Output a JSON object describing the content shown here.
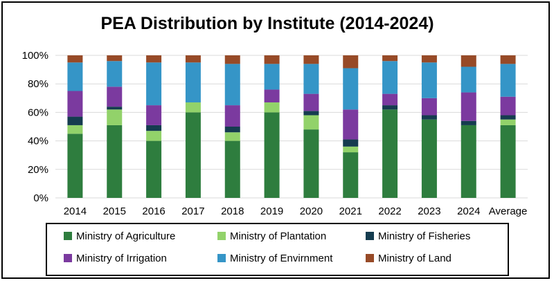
{
  "chart_data": {
    "type": "bar",
    "stacked": true,
    "percent": true,
    "title": "PEA Distribution by Institute (2014-2024)",
    "xlabel": "",
    "ylabel": "",
    "categories": [
      "2014",
      "2015",
      "2016",
      "2017",
      "2018",
      "2019",
      "2020",
      "2021",
      "2022",
      "2023",
      "2024",
      "Average"
    ],
    "ylim": [
      0,
      100
    ],
    "yticks": [
      "0%",
      "20%",
      "40%",
      "60%",
      "80%",
      "100%"
    ],
    "grid": true,
    "legend_position": "bottom",
    "series": [
      {
        "name": "Ministry of Agriculture",
        "color": "#2e7d3e",
        "values": [
          45,
          51,
          40,
          60,
          40,
          60,
          48,
          32,
          62,
          55,
          51,
          51
        ]
      },
      {
        "name": "Ministry of Plantation",
        "color": "#92d26a",
        "values": [
          6,
          11,
          7,
          7,
          6,
          7,
          10,
          4,
          0,
          0,
          0,
          4
        ]
      },
      {
        "name": "Ministry of Fisheries",
        "color": "#153c4f",
        "values": [
          6,
          2,
          4,
          0,
          4,
          0,
          3,
          5,
          3,
          3,
          3,
          3
        ]
      },
      {
        "name": "Ministry of Irrigation",
        "color": "#7b3a9f",
        "values": [
          18,
          14,
          14,
          0,
          15,
          9,
          12,
          21,
          8,
          12,
          20,
          13
        ]
      },
      {
        "name": "Ministry of Envirnment",
        "color": "#3595c7",
        "values": [
          20,
          18,
          30,
          28,
          29,
          18,
          21,
          29,
          23,
          25,
          18,
          23
        ]
      },
      {
        "name": "Ministry of Land",
        "color": "#974a27",
        "values": [
          5,
          4,
          5,
          5,
          6,
          6,
          6,
          9,
          4,
          5,
          8,
          6
        ]
      }
    ]
  }
}
